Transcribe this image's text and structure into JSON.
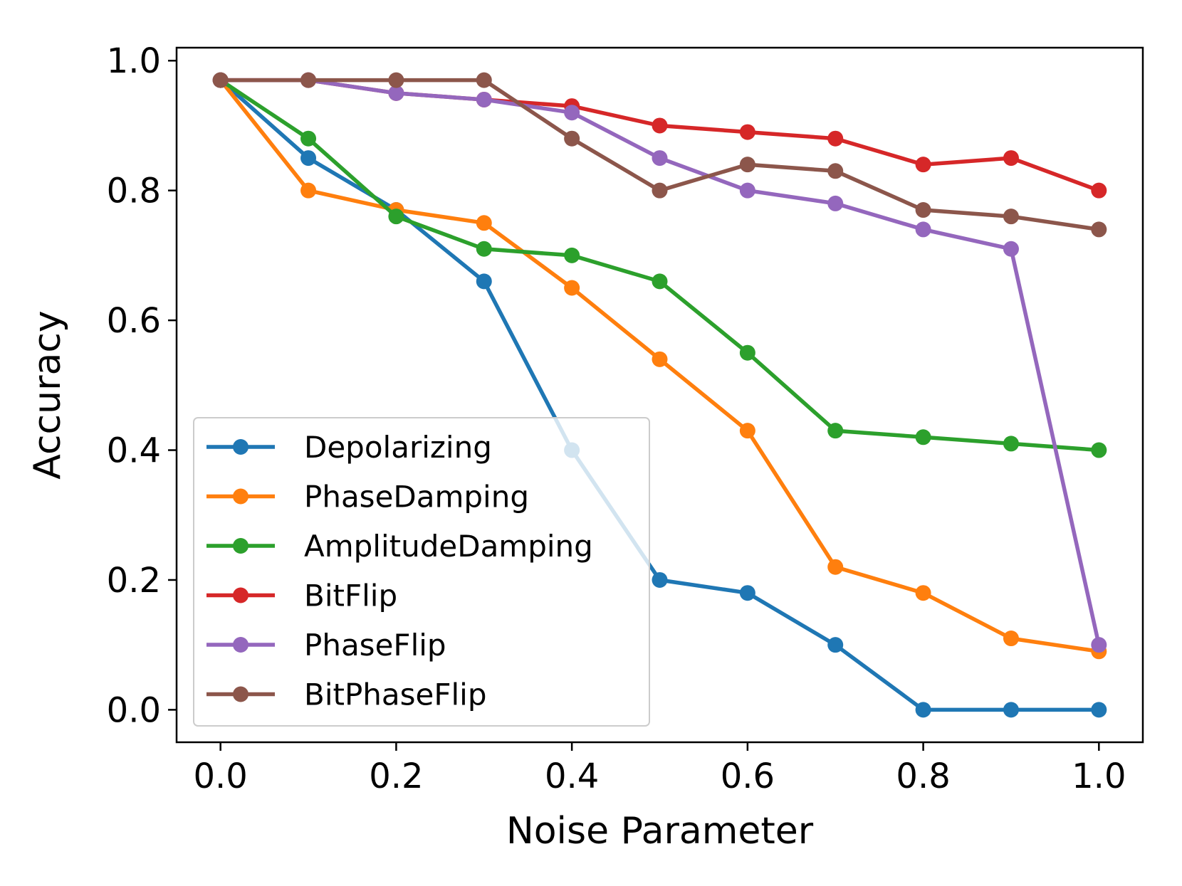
{
  "chart_data": {
    "type": "line",
    "title": "",
    "xlabel": "Noise Parameter",
    "ylabel": "Accuracy",
    "xlim": [
      -0.05,
      1.05
    ],
    "ylim": [
      -0.05,
      1.02
    ],
    "xticks": [
      0.0,
      0.2,
      0.4,
      0.6,
      0.8,
      1.0
    ],
    "xtick_labels": [
      "0.0",
      "0.2",
      "0.4",
      "0.6",
      "0.8",
      "1.0"
    ],
    "yticks": [
      0.0,
      0.2,
      0.4,
      0.6,
      0.8,
      1.0
    ],
    "ytick_labels": [
      "0.0",
      "0.2",
      "0.4",
      "0.6",
      "0.8",
      "1.0"
    ],
    "grid": false,
    "legend_position": "lower-left",
    "x": [
      0.0,
      0.1,
      0.2,
      0.3,
      0.4,
      0.5,
      0.6,
      0.7,
      0.8,
      0.9,
      1.0
    ],
    "series": [
      {
        "name": "Depolarizing",
        "color": "#1f77b4",
        "values": [
          0.97,
          0.85,
          0.77,
          0.66,
          0.4,
          0.2,
          0.18,
          0.1,
          0.0,
          0.0,
          0.0
        ]
      },
      {
        "name": "PhaseDamping",
        "color": "#ff7f0e",
        "values": [
          0.97,
          0.8,
          0.77,
          0.75,
          0.65,
          0.54,
          0.43,
          0.22,
          0.18,
          0.11,
          0.09
        ]
      },
      {
        "name": "AmplitudeDamping",
        "color": "#2ca02c",
        "values": [
          0.97,
          0.88,
          0.76,
          0.71,
          0.7,
          0.66,
          0.55,
          0.43,
          0.42,
          0.41,
          0.4
        ]
      },
      {
        "name": "BitFlip",
        "color": "#d62728",
        "values": [
          0.97,
          0.97,
          0.95,
          0.94,
          0.93,
          0.9,
          0.89,
          0.88,
          0.84,
          0.85,
          0.8
        ]
      },
      {
        "name": "PhaseFlip",
        "color": "#9467bd",
        "values": [
          0.97,
          0.97,
          0.95,
          0.94,
          0.92,
          0.85,
          0.8,
          0.78,
          0.74,
          0.71,
          0.1
        ]
      },
      {
        "name": "BitPhaseFlip",
        "color": "#8c564b",
        "values": [
          0.97,
          0.97,
          0.97,
          0.97,
          0.88,
          0.8,
          0.84,
          0.83,
          0.77,
          0.76,
          0.74
        ]
      }
    ]
  }
}
